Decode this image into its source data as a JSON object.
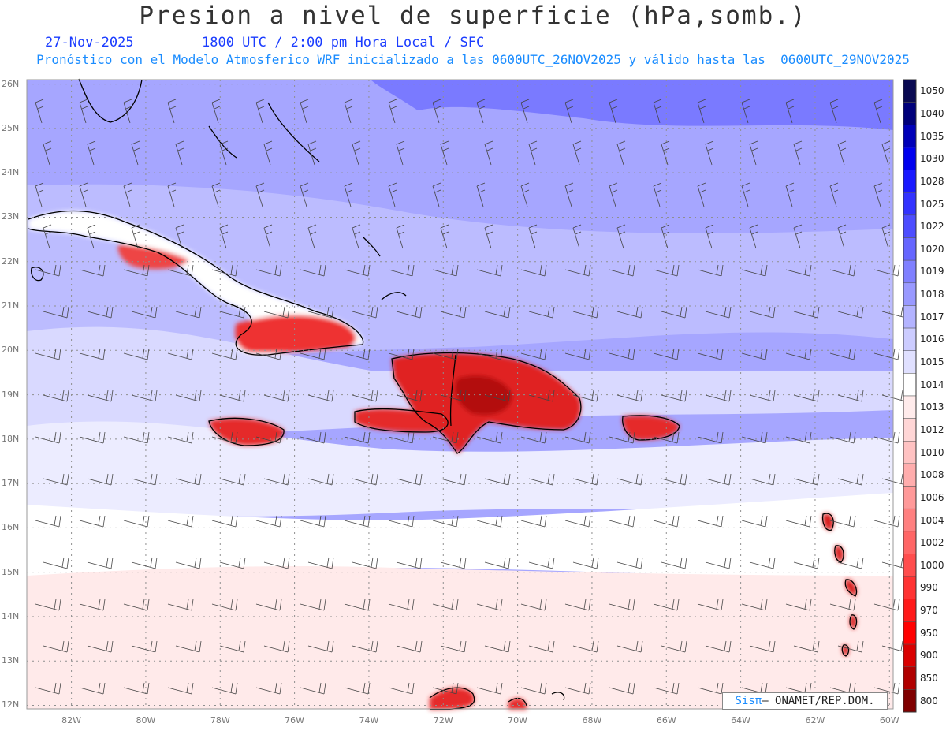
{
  "header": {
    "title": "Presion a nivel de superficie (hPa,somb.)",
    "date": "27-Nov-2025",
    "time": "1800 UTC / 2:00 pm Hora Local / SFC",
    "validity": "Pronóstico con el Modelo Atmosferico WRF inicializado a las 0600UTC_26NOV2025 y válido hasta las  0600UTC_29NOV2025"
  },
  "map": {
    "lat_labels": [
      "26N",
      "25N",
      "24N",
      "23N",
      "22N",
      "21N",
      "20N",
      "19N",
      "18N",
      "17N",
      "16N",
      "15N",
      "14N",
      "13N",
      "12N"
    ],
    "lon_labels": [
      "82W",
      "80W",
      "78W",
      "76W",
      "74W",
      "72W",
      "70W",
      "68W",
      "66W",
      "64W",
      "62W",
      "60W"
    ],
    "lat_values": [
      26,
      25,
      24,
      23,
      22,
      21,
      20,
      19,
      18,
      17,
      16,
      15,
      14,
      13,
      12
    ],
    "lon_values": [
      -82,
      -80,
      -78,
      -76,
      -74,
      -72,
      -70,
      -68,
      -66,
      -64,
      -62,
      -60
    ],
    "grid": "dotted",
    "wind_barbs": true
  },
  "colorbar": {
    "levels": [
      "1050",
      "1040",
      "1035",
      "1030",
      "1028",
      "1025",
      "1022",
      "1020",
      "1019",
      "1018",
      "1017",
      "1016",
      "1015",
      "1014",
      "1013",
      "1012",
      "1010",
      "1008",
      "1006",
      "1004",
      "1002",
      "1000",
      "990",
      "970",
      "950",
      "900",
      "850",
      "800"
    ],
    "colors": [
      "#0a0a52",
      "#00007a",
      "#0000b8",
      "#0000ee",
      "#1a1aff",
      "#3333ff",
      "#4d4dff",
      "#6666ff",
      "#8080ff",
      "#9999ff",
      "#b3b3ff",
      "#ccccff",
      "#e0e0ff",
      "#ffffff",
      "#ffebeb",
      "#ffd6d6",
      "#ffc2c2",
      "#ffadad",
      "#ff9999",
      "#ff8080",
      "#ff6666",
      "#ff4d4d",
      "#ff3333",
      "#ff1a1a",
      "#ff0000",
      "#d90000",
      "#b00000",
      "#800000"
    ]
  },
  "credit": {
    "brand": "Sisπ",
    "text": "– ONAMET/REP.DOM."
  }
}
